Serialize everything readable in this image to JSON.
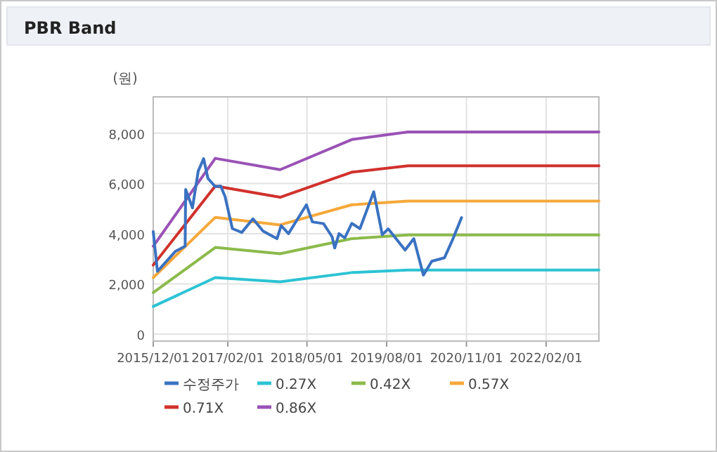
{
  "chart_data": {
    "type": "line",
    "title": "PBR Band",
    "ylabel": "(원)",
    "xlim": [
      "2015-12-01",
      "2022-12-01"
    ],
    "ylim": [
      -280,
      9450
    ],
    "xticks": [
      {
        "value": "2015-12-01",
        "label": "2015/12/01"
      },
      {
        "value": "2017-02-01",
        "label": "2017/02/01"
      },
      {
        "value": "2018-05-01",
        "label": "2018/05/01"
      },
      {
        "value": "2019-08-01",
        "label": "2019/08/01"
      },
      {
        "value": "2020-11-01",
        "label": "2020/11/01"
      },
      {
        "value": "2022-02-01",
        "label": "2022/02/01"
      }
    ],
    "yticks": [
      0,
      {
        "value": 2000,
        "label": "2,000"
      },
      {
        "value": 4000,
        "label": "4,000"
      },
      {
        "value": 6000,
        "label": "6,000"
      },
      {
        "value": 8000,
        "label": "8,000"
      }
    ],
    "grid": true,
    "legend": "bottom",
    "marker": "none",
    "line_style": "solid",
    "series": [
      {
        "name": "수정주가",
        "color": "#3a72c2",
        "x": [
          "2015-12-01",
          "2015-12-25",
          "2016-04-07",
          "2016-06-01",
          "2016-06-04",
          "2016-07-13",
          "2016-08-15",
          "2016-09-15",
          "2016-10-10",
          "2016-11-21",
          "2016-12-22",
          "2017-01-16",
          "2017-02-27",
          "2017-04-22",
          "2017-06-25",
          "2017-08-22",
          "2017-11-10",
          "2017-12-04",
          "2018-01-15",
          "2018-04-28",
          "2018-06-01",
          "2018-08-04",
          "2018-09-22",
          "2018-10-07",
          "2018-11-01",
          "2018-12-04",
          "2019-01-13",
          "2019-03-01",
          "2019-05-19",
          "2019-07-07",
          "2019-08-10",
          "2019-11-15",
          "2020-01-04",
          "2020-02-28",
          "2020-04-16",
          "2020-06-28",
          "2020-08-16",
          "2020-10-04"
        ],
        "values": [
          4080,
          2500,
          3300,
          3500,
          5760,
          5030,
          6490,
          6990,
          6200,
          5870,
          5900,
          5480,
          4200,
          4050,
          4590,
          4100,
          3800,
          4320,
          4000,
          5150,
          4470,
          4400,
          3880,
          3430,
          4000,
          3830,
          4410,
          4200,
          5670,
          3960,
          4190,
          3350,
          3800,
          2350,
          2900,
          3040,
          3800,
          4640
        ]
      },
      {
        "name": "0.27X",
        "color": "#2cc3d3",
        "x": [
          "2015-12-01",
          "2016-11-21",
          "2017-11-28",
          "2019-01-13",
          "2019-12-01",
          "2022-12-01"
        ],
        "values": [
          1100,
          2250,
          2080,
          2450,
          2550,
          2550
        ]
      },
      {
        "name": "0.42X",
        "color": "#8cba4b",
        "x": [
          "2015-12-01",
          "2016-11-21",
          "2017-11-28",
          "2019-01-13",
          "2019-12-01",
          "2022-12-01"
        ],
        "values": [
          1650,
          3450,
          3200,
          3800,
          3950,
          3950
        ]
      },
      {
        "name": "0.57X",
        "color": "#f5a83a",
        "x": [
          "2015-12-01",
          "2016-11-21",
          "2017-11-28",
          "2019-01-13",
          "2019-12-01",
          "2022-12-01"
        ],
        "values": [
          2250,
          4650,
          4350,
          5150,
          5300,
          5300
        ]
      },
      {
        "name": "0.71X",
        "color": "#d0312d",
        "x": [
          "2015-12-01",
          "2016-11-21",
          "2017-11-28",
          "2019-01-13",
          "2019-12-01",
          "2022-12-01"
        ],
        "values": [
          2750,
          5900,
          5450,
          6450,
          6700,
          6700
        ]
      },
      {
        "name": "0.86X",
        "color": "#9a52b5",
        "x": [
          "2015-12-01",
          "2016-11-21",
          "2017-11-28",
          "2019-01-13",
          "2019-12-01",
          "2022-12-01"
        ],
        "values": [
          3500,
          7000,
          6550,
          7750,
          8050,
          8050
        ]
      }
    ]
  }
}
